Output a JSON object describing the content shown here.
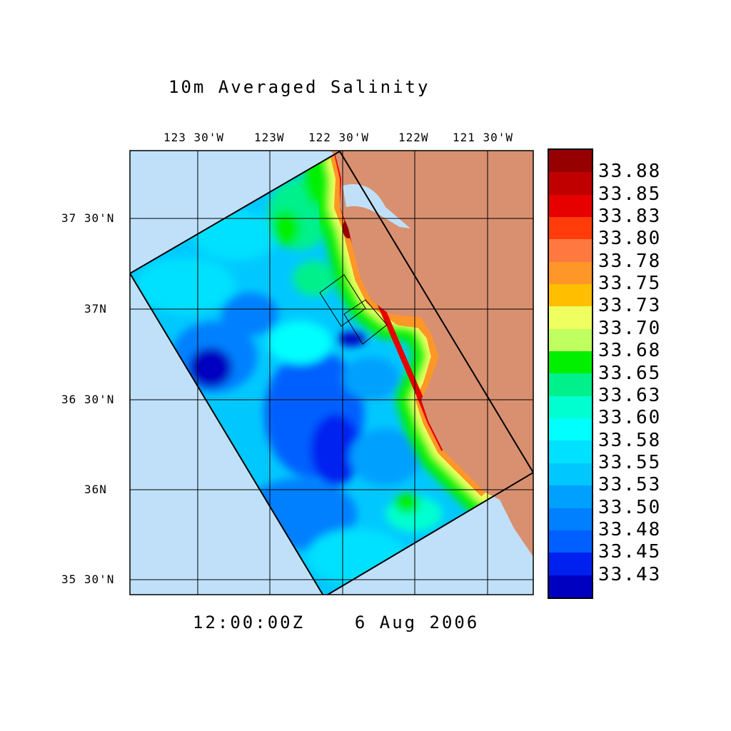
{
  "title": "10m Averaged Salinity",
  "time_label": "12:00:00Z    6 Aug 2006",
  "lon_labels": [
    "123 30'W",
    "123W",
    "122 30'W",
    "122W",
    "121 30'W"
  ],
  "lat_labels": [
    "37 30'N",
    "37N",
    "36 30'N",
    "36N",
    "35 30'N"
  ],
  "colorbar": {
    "levels": [
      "33.88",
      "33.85",
      "33.83",
      "33.80",
      "33.78",
      "33.75",
      "33.73",
      "33.70",
      "33.68",
      "33.65",
      "33.63",
      "33.60",
      "33.58",
      "33.55",
      "33.53",
      "33.50",
      "33.48",
      "33.45",
      "33.43"
    ],
    "colors": [
      "#960000",
      "#c00000",
      "#e60000",
      "#ff3c0a",
      "#ff7840",
      "#ff9628",
      "#ffbe00",
      "#f0ff60",
      "#c0ff60",
      "#00f000",
      "#00f08c",
      "#00ffd0",
      "#00ffff",
      "#00e0ff",
      "#00c8ff",
      "#00a0ff",
      "#0080ff",
      "#0060ff",
      "#0020f0",
      "#0000c0"
    ]
  },
  "map_colors": {
    "ocean_outside": "#c0e0fa",
    "land": "#d89070"
  }
}
